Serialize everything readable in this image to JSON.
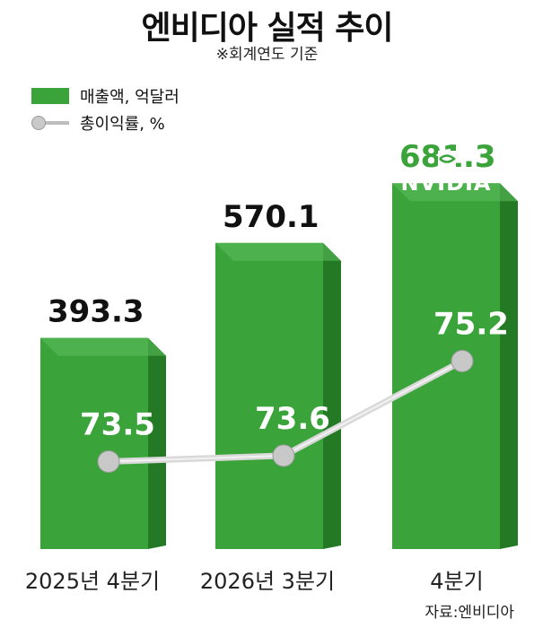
{
  "title": "엔비디아 실적 추이",
  "subtitle": "※회계연도 기준",
  "legend": {
    "revenue_label": "매출액, 억달러",
    "margin_label": "총이익률, %"
  },
  "source": "자료:엔비디아",
  "logo_text": "NVIDIA",
  "colors": {
    "bar_front": "#3aa33a",
    "bar_top": "#5cc05c",
    "bar_side": "#247a24",
    "line": "#d9d9d9",
    "marker": "#c8c8c8"
  },
  "chart_data": {
    "type": "bar",
    "categories": [
      "2025년 4분기",
      "2026년 3분기",
      "4분기"
    ],
    "series": [
      {
        "name": "매출액, 억달러",
        "type": "bar",
        "values": [
          393.3,
          570.1,
          681.3
        ]
      },
      {
        "name": "총이익률, %",
        "type": "line",
        "values": [
          73.5,
          73.6,
          75.2
        ]
      }
    ],
    "bar_labels": [
      "393.3",
      "570.1",
      "681.3"
    ],
    "line_labels": [
      "73.5",
      "73.6",
      "75.2"
    ],
    "grid": false
  }
}
